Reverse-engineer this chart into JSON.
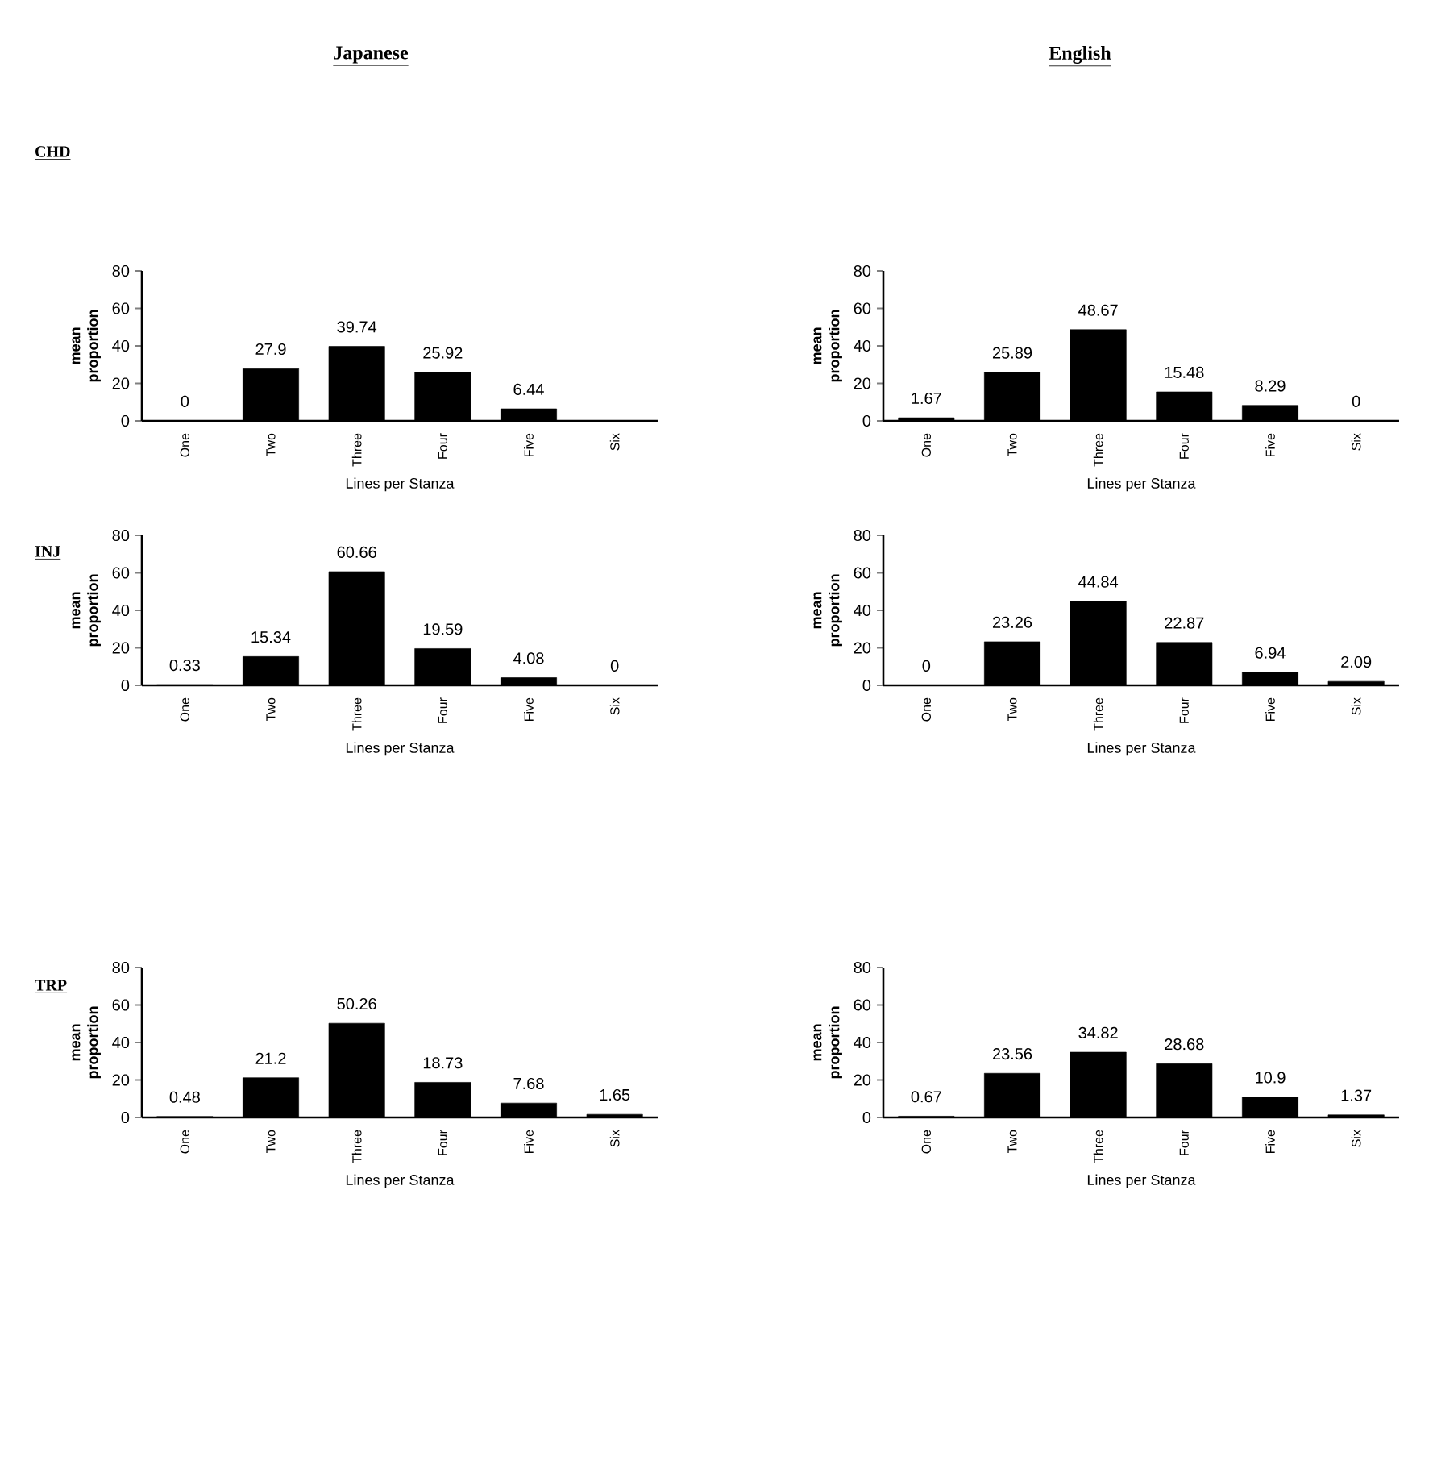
{
  "chart_data": [
    {
      "type": "bar",
      "title": "Japanese",
      "subtitle": "CHD",
      "categories": [
        "One",
        "Two",
        "Three",
        "Four",
        "Five",
        "Six"
      ],
      "values": [
        0,
        27.9,
        39.74,
        25.92,
        6.44,
        0
      ],
      "value_labels": [
        "0",
        "27.9",
        "39.74",
        "25.92",
        "6.44",
        null
      ],
      "color": "#000000",
      "ylim": [
        0,
        80
      ],
      "yticks": [
        0,
        20,
        40,
        60,
        80
      ],
      "xlabel": "Lines per Stanza",
      "ylabel": "mean proportion"
    },
    {
      "type": "bar",
      "title": "English",
      "categories": [
        "One",
        "Two",
        "Three",
        "Four",
        "Five",
        "Six"
      ],
      "values": [
        1.67,
        25.89,
        48.67,
        15.48,
        8.29,
        0
      ],
      "value_labels": [
        "1.67",
        "25.89",
        "48.67",
        "15.48",
        "8.29",
        "0"
      ],
      "color": "#000000",
      "ylim": [
        0,
        80
      ],
      "yticks": [
        0,
        20,
        40,
        60,
        80
      ],
      "xlabel": "Lines per Stanza",
      "ylabel": "mean proportion"
    },
    {
      "type": "bar",
      "subtitle": "INJ",
      "categories": [
        "One",
        "Two",
        "Three",
        "Four",
        "Five",
        "Six"
      ],
      "values": [
        0.33,
        15.34,
        60.66,
        19.59,
        4.08,
        0
      ],
      "value_labels": [
        "0.33",
        "15.34",
        "60.66",
        "19.59",
        "4.08",
        "0"
      ],
      "color": "#000000",
      "ylim": [
        0,
        80
      ],
      "yticks": [
        0,
        20,
        40,
        60,
        80
      ],
      "xlabel": "Lines per Stanza",
      "ylabel": "mean proportion"
    },
    {
      "type": "bar",
      "categories": [
        "One",
        "Two",
        "Three",
        "Four",
        "Five",
        "Six"
      ],
      "values": [
        0,
        23.26,
        44.84,
        22.87,
        6.94,
        2.09
      ],
      "value_labels": [
        "0",
        "23.26",
        "44.84",
        "22.87",
        "6.94",
        "2.09"
      ],
      "color": "#000000",
      "ylim": [
        0,
        80
      ],
      "yticks": [
        0,
        20,
        40,
        60,
        80
      ],
      "xlabel": "Lines per Stanza",
      "ylabel": "mean proportion"
    },
    {
      "type": "bar",
      "subtitle": "TRP",
      "categories": [
        "One",
        "Two",
        "Three",
        "Four",
        "Five",
        "Six"
      ],
      "values": [
        0.48,
        21.2,
        50.26,
        18.73,
        7.68,
        1.65
      ],
      "value_labels": [
        "0.48",
        "21.2",
        "50.26",
        "18.73",
        "7.68",
        "1.65"
      ],
      "color": "#000000",
      "ylim": [
        0,
        80
      ],
      "yticks": [
        0,
        20,
        40,
        60,
        80
      ],
      "xlabel": "Lines per Stanza",
      "ylabel": "mean proportion"
    },
    {
      "type": "bar",
      "categories": [
        "One",
        "Two",
        "Three",
        "Four",
        "Five",
        "Six"
      ],
      "values": [
        0.67,
        23.56,
        34.82,
        28.68,
        10.9,
        1.37
      ],
      "value_labels": [
        "0.67",
        "23.56",
        "34.82",
        "28.68",
        "10.9",
        "1.37"
      ],
      "color": "#000000",
      "ylim": [
        0,
        80
      ],
      "yticks": [
        0,
        20,
        40,
        60,
        80
      ],
      "xlabel": "Lines per Stanza",
      "ylabel": "mean proportion"
    }
  ]
}
